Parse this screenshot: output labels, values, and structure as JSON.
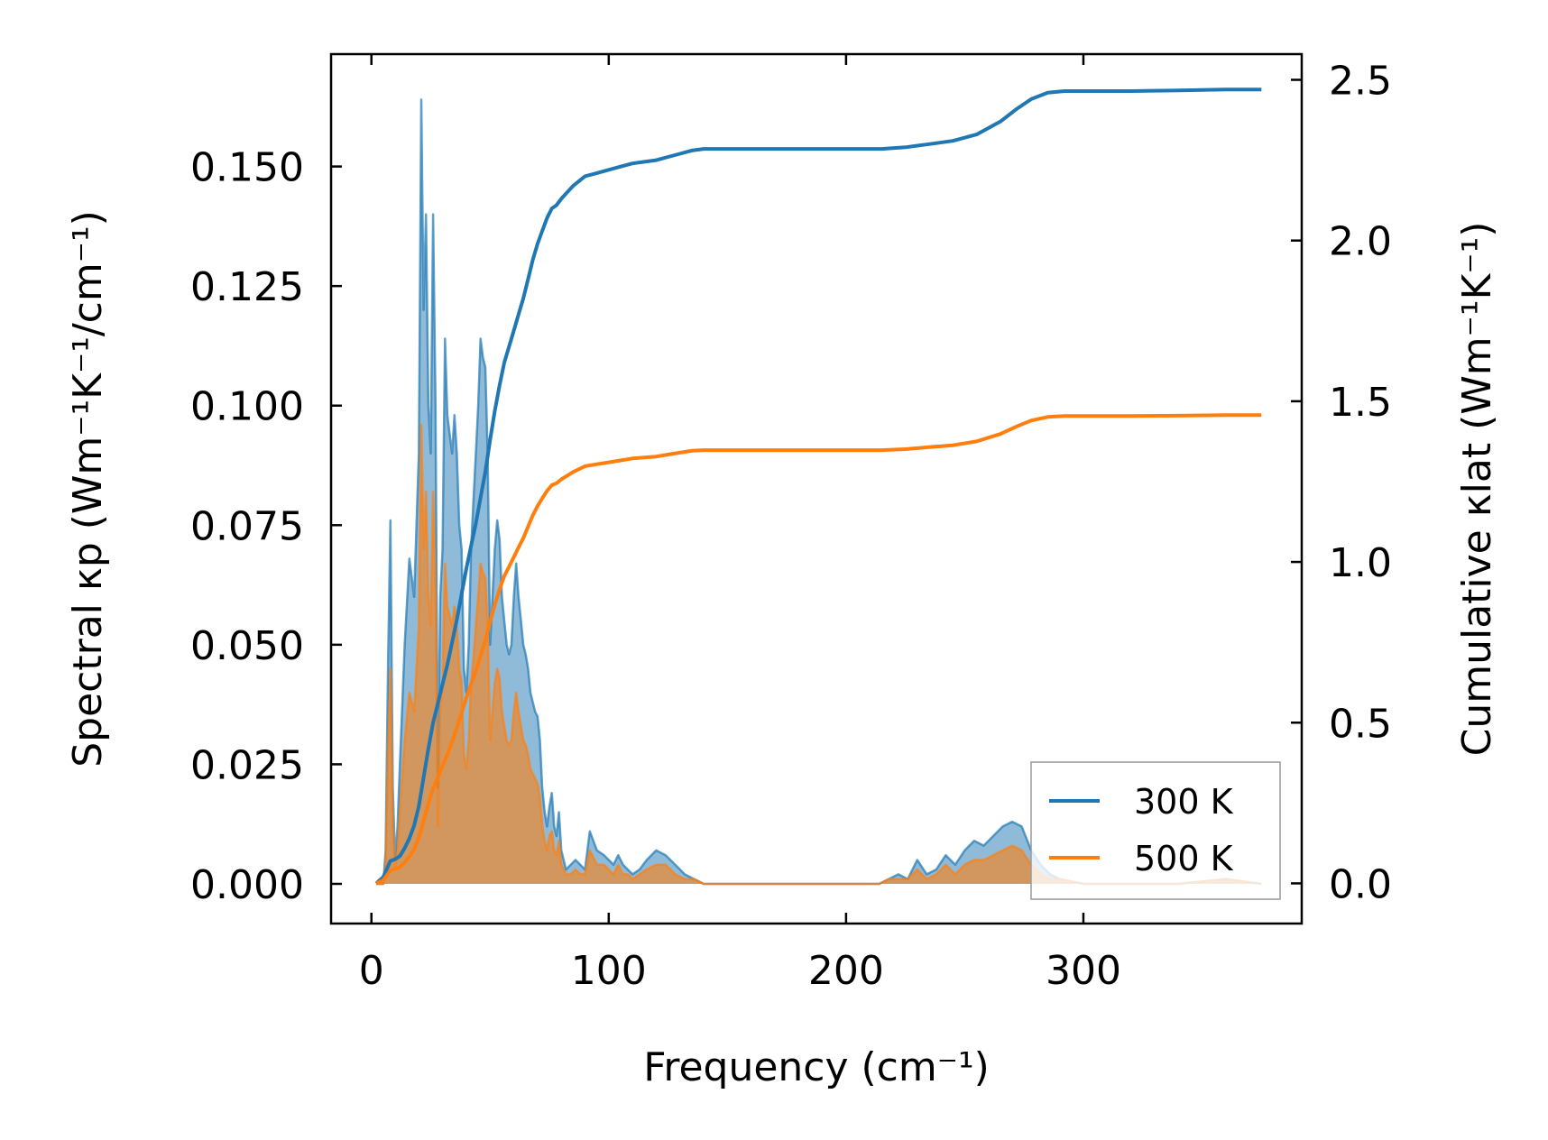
{
  "chart_data": {
    "type": "area+line (dual-axis)",
    "xlabel": "Frequency (cm⁻¹)",
    "ylabel_left": "Spectral κp (Wm⁻¹K⁻¹/cm⁻¹)",
    "ylabel_right": "Cumulative κlat (Wm⁻¹K⁻¹)",
    "xlim": [
      -17,
      392
    ],
    "ylim_left": [
      -0.0083,
      0.1735
    ],
    "ylim_right": [
      -0.125,
      2.58
    ],
    "x_ticks": [
      0,
      100,
      200,
      300
    ],
    "x_tick_labels": [
      "0",
      "100",
      "200",
      "300"
    ],
    "y_left_ticks": [
      0.0,
      0.025,
      0.05,
      0.075,
      0.1,
      0.125,
      0.15
    ],
    "y_left_tick_labels": [
      "0.000",
      "0.025",
      "0.050",
      "0.075",
      "0.100",
      "0.125",
      "0.150"
    ],
    "y_right_ticks": [
      0.0,
      0.5,
      1.0,
      1.5,
      2.0,
      2.5
    ],
    "y_right_tick_labels": [
      "0.0",
      "0.5",
      "1.0",
      "1.5",
      "2.0",
      "2.5"
    ],
    "legend_position": "lower-right",
    "series": [
      {
        "name": "300 K",
        "color": "#1f77b4",
        "spectral": {
          "x": [
            2,
            5,
            6,
            7,
            8,
            9,
            10,
            11,
            12,
            14,
            16,
            18,
            20,
            21,
            22,
            23,
            24,
            25,
            26,
            27,
            28,
            29,
            30,
            31,
            32,
            33,
            34,
            35,
            36,
            37,
            38,
            39,
            40,
            41,
            42,
            43,
            44,
            45,
            46,
            47,
            48,
            49,
            50,
            51,
            52,
            53,
            54,
            55,
            56,
            57,
            58,
            59,
            60,
            61,
            62,
            63,
            64,
            65,
            66,
            67,
            68,
            69,
            70,
            71,
            72,
            73,
            74,
            75,
            76,
            77,
            78,
            79,
            80,
            82,
            84,
            86,
            88,
            90,
            92,
            95,
            98,
            100,
            102,
            104,
            106,
            108,
            110,
            113,
            116,
            120,
            124,
            128,
            132,
            136,
            140,
            144,
            148,
            152,
            160,
            180,
            200,
            210,
            214,
            218,
            222,
            226,
            230,
            234,
            238,
            242,
            246,
            250,
            254,
            258,
            262,
            266,
            270,
            274,
            278,
            282,
            286,
            290,
            300,
            320,
            340,
            360,
            375
          ],
          "y": [
            0.0,
            0.0,
            0.007,
            0.045,
            0.076,
            0.02,
            0.005,
            0.012,
            0.025,
            0.05,
            0.068,
            0.06,
            0.09,
            0.164,
            0.12,
            0.14,
            0.1,
            0.09,
            0.14,
            0.1,
            0.02,
            0.06,
            0.07,
            0.114,
            0.098,
            0.094,
            0.09,
            0.098,
            0.09,
            0.075,
            0.07,
            0.045,
            0.04,
            0.05,
            0.07,
            0.08,
            0.09,
            0.1,
            0.114,
            0.11,
            0.108,
            0.09,
            0.05,
            0.06,
            0.07,
            0.076,
            0.072,
            0.06,
            0.055,
            0.05,
            0.048,
            0.05,
            0.06,
            0.067,
            0.06,
            0.055,
            0.05,
            0.048,
            0.045,
            0.04,
            0.038,
            0.036,
            0.035,
            0.03,
            0.02,
            0.015,
            0.012,
            0.016,
            0.019,
            0.012,
            0.01,
            0.015,
            0.007,
            0.003,
            0.004,
            0.005,
            0.004,
            0.003,
            0.011,
            0.007,
            0.006,
            0.005,
            0.004,
            0.006,
            0.004,
            0.003,
            0.002,
            0.003,
            0.005,
            0.007,
            0.006,
            0.004,
            0.002,
            0.001,
            0.0,
            0.0,
            0.0,
            0.0,
            0.0,
            0.0,
            0.0,
            0.0,
            0.0,
            0.001,
            0.002,
            0.001,
            0.005,
            0.002,
            0.003,
            0.006,
            0.004,
            0.007,
            0.009,
            0.008,
            0.01,
            0.012,
            0.013,
            0.012,
            0.007,
            0.004,
            0.002,
            0.001,
            0.0,
            0.0,
            0.0,
            0.001,
            0.0
          ]
        },
        "cumulative": {
          "x": [
            2,
            5,
            8,
            10,
            12,
            14,
            16,
            18,
            20,
            22,
            24,
            26,
            28,
            30,
            32,
            34,
            36,
            38,
            40,
            42,
            44,
            46,
            48,
            50,
            52,
            54,
            56,
            58,
            60,
            62,
            64,
            66,
            68,
            70,
            72,
            74,
            76,
            78,
            80,
            85,
            90,
            95,
            100,
            105,
            110,
            115,
            120,
            125,
            130,
            135,
            140,
            145,
            150,
            160,
            180,
            200,
            215,
            225,
            235,
            245,
            255,
            265,
            272,
            278,
            285,
            292,
            300,
            320,
            340,
            360,
            375
          ],
          "y": [
            0.0,
            0.02,
            0.07,
            0.075,
            0.085,
            0.11,
            0.14,
            0.18,
            0.24,
            0.33,
            0.42,
            0.5,
            0.56,
            0.62,
            0.68,
            0.75,
            0.82,
            0.9,
            0.98,
            1.05,
            1.12,
            1.2,
            1.28,
            1.38,
            1.47,
            1.55,
            1.62,
            1.67,
            1.72,
            1.77,
            1.82,
            1.88,
            1.94,
            1.99,
            2.03,
            2.07,
            2.1,
            2.11,
            2.13,
            2.17,
            2.2,
            2.21,
            2.22,
            2.23,
            2.24,
            2.245,
            2.25,
            2.26,
            2.27,
            2.28,
            2.285,
            2.285,
            2.285,
            2.285,
            2.285,
            2.285,
            2.285,
            2.29,
            2.3,
            2.31,
            2.33,
            2.37,
            2.41,
            2.44,
            2.46,
            2.465,
            2.465,
            2.465,
            2.467,
            2.47,
            2.47
          ]
        }
      },
      {
        "name": "500 K",
        "color": "#ff7f0e",
        "spectral": {
          "x": [
            2,
            5,
            6,
            7,
            8,
            9,
            10,
            11,
            12,
            14,
            16,
            18,
            20,
            21,
            22,
            23,
            24,
            25,
            26,
            27,
            28,
            29,
            30,
            31,
            32,
            33,
            34,
            35,
            36,
            37,
            38,
            39,
            40,
            41,
            42,
            43,
            44,
            45,
            46,
            47,
            48,
            49,
            50,
            51,
            52,
            53,
            54,
            55,
            56,
            57,
            58,
            59,
            60,
            61,
            62,
            63,
            64,
            65,
            66,
            67,
            68,
            69,
            70,
            71,
            72,
            73,
            74,
            75,
            76,
            77,
            78,
            79,
            80,
            82,
            84,
            86,
            88,
            90,
            92,
            95,
            98,
            100,
            102,
            104,
            106,
            108,
            110,
            113,
            116,
            120,
            124,
            128,
            132,
            136,
            140,
            144,
            148,
            152,
            160,
            180,
            200,
            210,
            214,
            218,
            222,
            226,
            230,
            234,
            238,
            242,
            246,
            250,
            254,
            258,
            262,
            266,
            270,
            274,
            278,
            282,
            286,
            290,
            300,
            320,
            340,
            360,
            375
          ],
          "y": [
            0.0,
            0.0,
            0.004,
            0.027,
            0.045,
            0.012,
            0.003,
            0.007,
            0.015,
            0.03,
            0.04,
            0.036,
            0.054,
            0.096,
            0.07,
            0.082,
            0.06,
            0.054,
            0.082,
            0.06,
            0.012,
            0.036,
            0.042,
            0.067,
            0.058,
            0.056,
            0.054,
            0.058,
            0.054,
            0.045,
            0.042,
            0.027,
            0.024,
            0.03,
            0.042,
            0.047,
            0.054,
            0.06,
            0.067,
            0.065,
            0.064,
            0.054,
            0.03,
            0.036,
            0.042,
            0.045,
            0.043,
            0.036,
            0.033,
            0.03,
            0.029,
            0.03,
            0.036,
            0.04,
            0.036,
            0.033,
            0.03,
            0.029,
            0.027,
            0.024,
            0.023,
            0.022,
            0.021,
            0.018,
            0.012,
            0.009,
            0.007,
            0.01,
            0.011,
            0.007,
            0.006,
            0.009,
            0.004,
            0.002,
            0.002,
            0.003,
            0.002,
            0.002,
            0.007,
            0.004,
            0.004,
            0.003,
            0.002,
            0.004,
            0.002,
            0.002,
            0.001,
            0.002,
            0.003,
            0.004,
            0.004,
            0.002,
            0.001,
            0.001,
            0.0,
            0.0,
            0.0,
            0.0,
            0.0,
            0.0,
            0.0,
            0.0,
            0.0,
            0.001,
            0.001,
            0.001,
            0.003,
            0.001,
            0.002,
            0.004,
            0.002,
            0.004,
            0.005,
            0.005,
            0.006,
            0.007,
            0.008,
            0.007,
            0.004,
            0.002,
            0.001,
            0.001,
            0.0,
            0.0,
            0.0,
            0.001,
            0.0
          ]
        },
        "cumulative": {
          "x": [
            2,
            5,
            8,
            10,
            12,
            14,
            16,
            18,
            20,
            22,
            24,
            26,
            28,
            30,
            32,
            34,
            36,
            38,
            40,
            42,
            44,
            46,
            48,
            50,
            52,
            54,
            56,
            58,
            60,
            62,
            64,
            66,
            68,
            70,
            72,
            74,
            76,
            78,
            80,
            85,
            90,
            95,
            100,
            105,
            110,
            115,
            120,
            125,
            130,
            135,
            140,
            145,
            150,
            160,
            180,
            200,
            215,
            225,
            235,
            245,
            255,
            265,
            272,
            278,
            285,
            292,
            300,
            320,
            340,
            360,
            375
          ],
          "y": [
            0.0,
            0.01,
            0.04,
            0.045,
            0.05,
            0.065,
            0.083,
            0.106,
            0.142,
            0.195,
            0.248,
            0.295,
            0.33,
            0.366,
            0.4,
            0.442,
            0.484,
            0.53,
            0.578,
            0.62,
            0.66,
            0.708,
            0.755,
            0.814,
            0.867,
            0.915,
            0.956,
            0.985,
            1.015,
            1.045,
            1.074,
            1.11,
            1.145,
            1.174,
            1.198,
            1.221,
            1.239,
            1.245,
            1.257,
            1.28,
            1.298,
            1.304,
            1.31,
            1.316,
            1.322,
            1.325,
            1.328,
            1.334,
            1.34,
            1.346,
            1.348,
            1.348,
            1.348,
            1.348,
            1.348,
            1.348,
            1.348,
            1.351,
            1.357,
            1.363,
            1.375,
            1.398,
            1.422,
            1.44,
            1.451,
            1.454,
            1.454,
            1.454,
            1.455,
            1.457,
            1.457
          ]
        }
      }
    ]
  }
}
